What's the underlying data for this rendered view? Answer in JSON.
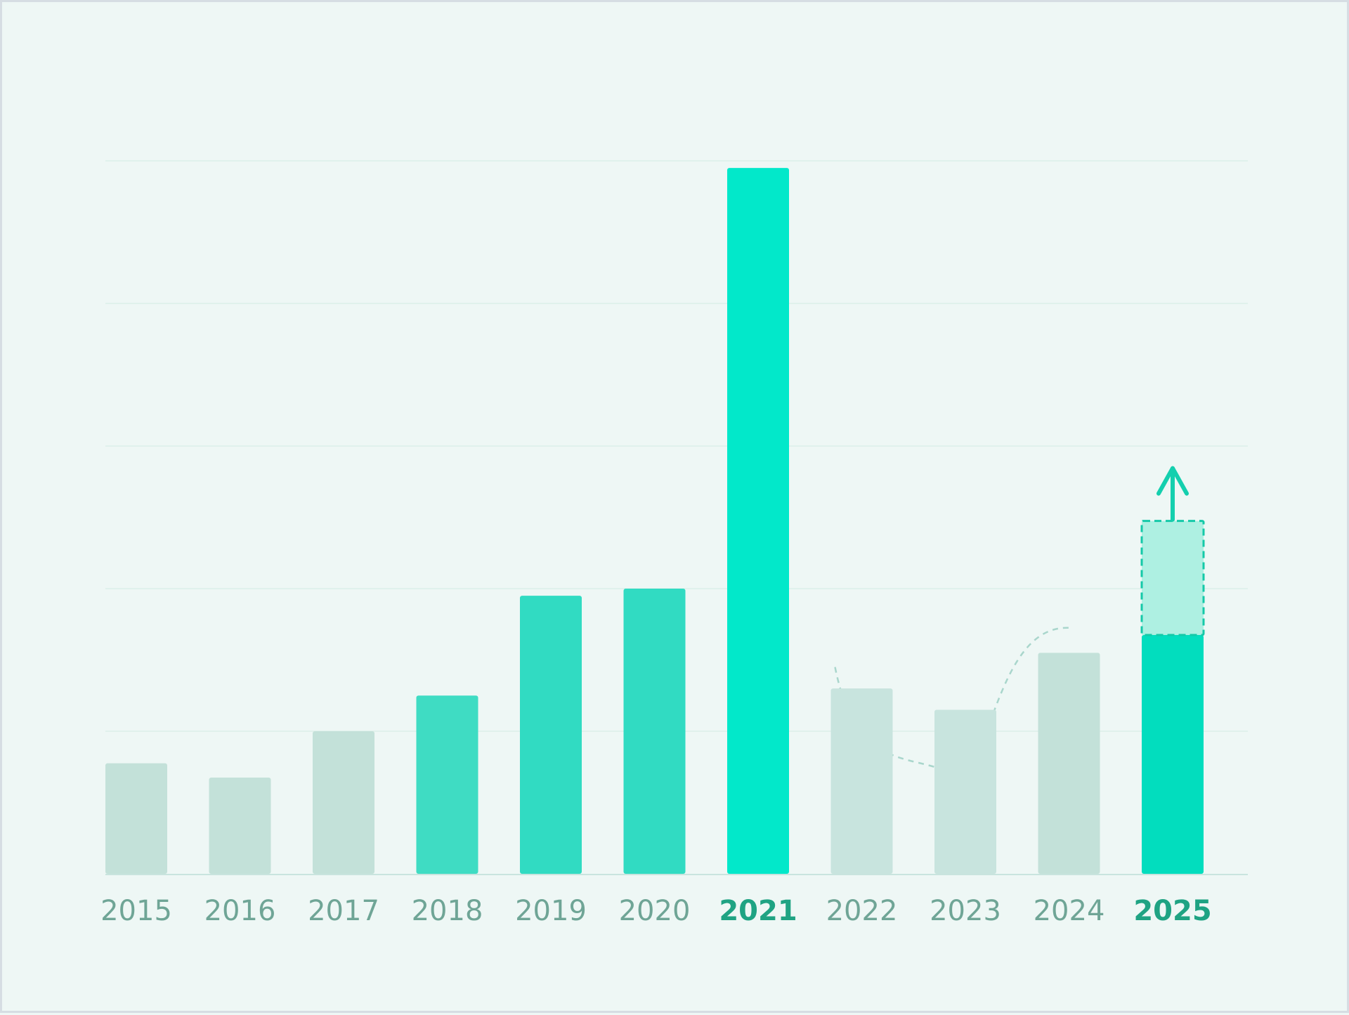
{
  "chart_data": {
    "type": "bar",
    "title": "",
    "xlabel": "",
    "ylabel": "",
    "ylim": [
      0,
      100
    ],
    "grid": true,
    "categories": [
      "2015",
      "2016",
      "2017",
      "2018",
      "2019",
      "2020",
      "2021",
      "2022",
      "2023",
      "2024",
      "2025"
    ],
    "values": [
      15.5,
      13.5,
      20,
      25,
      39,
      40,
      99,
      26,
      23,
      31,
      33.5
    ],
    "projection": {
      "category": "2025",
      "from": 33.5,
      "to": 49.5,
      "arrow": "up"
    },
    "highlighted": [
      "2021",
      "2025"
    ],
    "bar_colors": [
      "#c3e1d9",
      "#c3e1d9",
      "#c3e1d9",
      "#3fdcc3",
      "#31dbc2",
      "#31dbc2",
      "#02e8ca",
      "#c8e4de",
      "#c8e4de",
      "#c3e1d9",
      "#02ddbe"
    ],
    "colors": {
      "background": "#eef7f5",
      "grid": "#dcefea",
      "axis": "#c8e4de",
      "tick_text": "#6fa596",
      "tick_text_highlight": "#1fa383",
      "projection_fill": "#aef0e2",
      "projection_stroke": "#14c9a8",
      "arrow": "#14cfae",
      "trend": "#a9d6cc"
    }
  }
}
